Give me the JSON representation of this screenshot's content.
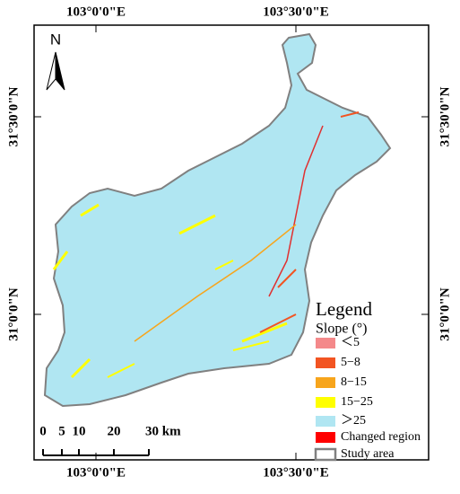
{
  "map": {
    "lon_labels": [
      "103°0'0\"E",
      "103°30'0\"E"
    ],
    "lat_labels": [
      "31°30'0\"N",
      "31°0'0\"N"
    ],
    "north": "N",
    "legend": {
      "title": "Legend",
      "subtitle": "Slope (°)",
      "items": [
        {
          "label": "＜5",
          "color": "#f4898a"
        },
        {
          "label": "5−8",
          "color": "#f25422"
        },
        {
          "label": "8−15",
          "color": "#f7a51c"
        },
        {
          "label": "15−25",
          "color": "#ffff00"
        },
        {
          "label": "＞25",
          "color": "#b0e6f2"
        },
        {
          "label": "Changed region",
          "color": "#ff0000"
        },
        {
          "label": "Study area",
          "outline": "#808080"
        }
      ]
    },
    "scale_bar": [
      "0",
      "5",
      "10",
      "20",
      "30 km"
    ]
  }
}
